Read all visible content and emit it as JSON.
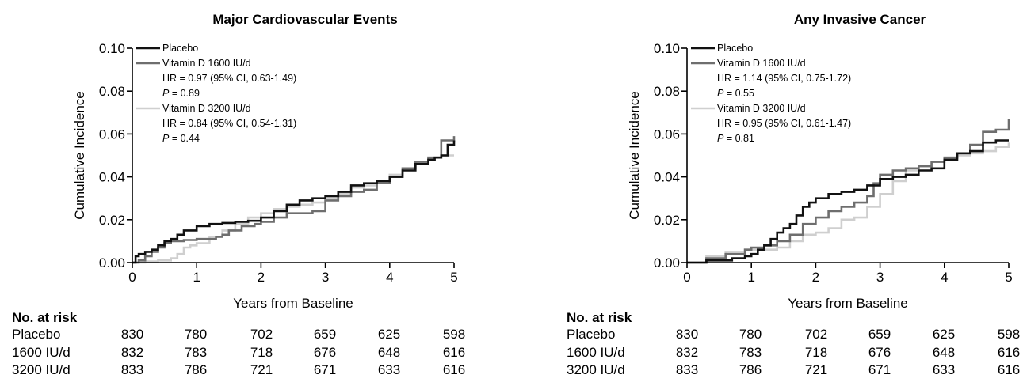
{
  "colors": {
    "placebo": "#111111",
    "vd1600": "#6e6e6e",
    "vd3200": "#cfcfcf",
    "axis": "#000000"
  },
  "risk_table": {
    "heading": "No. at risk",
    "rows": [
      {
        "label": "Placebo",
        "values": [
          "830",
          "780",
          "702",
          "659",
          "625",
          "598"
        ]
      },
      {
        "label": "1600 IU/d",
        "values": [
          "832",
          "783",
          "718",
          "676",
          "648",
          "616"
        ]
      },
      {
        "label": "3200 IU/d",
        "values": [
          "833",
          "786",
          "721",
          "671",
          "633",
          "616"
        ]
      }
    ]
  },
  "chart_data": [
    {
      "type": "line",
      "title": "Major Cardiovascular Events",
      "xlabel": "Years from Baseline",
      "ylabel": "Cumulative Incidence",
      "xlim": [
        0,
        5
      ],
      "ylim": [
        0,
        0.1
      ],
      "x_ticks": [
        "0",
        "1",
        "2",
        "3",
        "4",
        "5"
      ],
      "y_ticks": [
        "0.00",
        "0.02",
        "0.04",
        "0.06",
        "0.08",
        "0.10"
      ],
      "legend": {
        "placement": "top-left",
        "entries": [
          {
            "series": "Placebo",
            "lines": [
              "Placebo"
            ]
          },
          {
            "series": "Vitamin D 1600 IU/d",
            "lines": [
              "Vitamin D 1600 IU/d",
              "HR = 0.97 (95% CI, 0.63-1.49)",
              "P = 0.89"
            ]
          },
          {
            "series": "Vitamin D 3200 IU/d",
            "lines": [
              "Vitamin D 3200 IU/d",
              "HR = 0.84 (95% CI, 0.54-1.31)",
              "P = 0.44"
            ]
          }
        ]
      },
      "series": [
        {
          "name": "Placebo",
          "color_key": "placebo",
          "x": [
            0,
            0.05,
            0.1,
            0.2,
            0.3,
            0.4,
            0.5,
            0.6,
            0.7,
            0.8,
            1.0,
            1.2,
            1.4,
            1.6,
            1.8,
            2.0,
            2.2,
            2.4,
            2.6,
            2.8,
            3.0,
            3.2,
            3.4,
            3.6,
            3.8,
            4.0,
            4.2,
            4.4,
            4.6,
            4.7,
            4.8,
            4.9,
            5.0
          ],
          "y": [
            0,
            0.003,
            0.004,
            0.005,
            0.006,
            0.008,
            0.01,
            0.011,
            0.013,
            0.015,
            0.017,
            0.018,
            0.0185,
            0.019,
            0.0195,
            0.021,
            0.024,
            0.027,
            0.029,
            0.03,
            0.031,
            0.033,
            0.036,
            0.037,
            0.038,
            0.04,
            0.043,
            0.046,
            0.048,
            0.049,
            0.05,
            0.055,
            0.057
          ]
        },
        {
          "name": "Vitamin D 1600 IU/d",
          "color_key": "vd1600",
          "x": [
            0,
            0.1,
            0.2,
            0.3,
            0.4,
            0.5,
            0.6,
            0.8,
            1.0,
            1.2,
            1.3,
            1.4,
            1.5,
            1.7,
            1.9,
            2.0,
            2.2,
            2.4,
            2.6,
            2.8,
            3.0,
            3.2,
            3.4,
            3.6,
            3.8,
            4.0,
            4.2,
            4.4,
            4.6,
            4.8,
            5.0
          ],
          "y": [
            0,
            0.001,
            0.003,
            0.005,
            0.007,
            0.009,
            0.01,
            0.0105,
            0.011,
            0.011,
            0.012,
            0.013,
            0.015,
            0.017,
            0.018,
            0.019,
            0.021,
            0.023,
            0.023,
            0.024,
            0.029,
            0.031,
            0.033,
            0.034,
            0.037,
            0.04,
            0.044,
            0.047,
            0.049,
            0.057,
            0.059
          ]
        },
        {
          "name": "Vitamin D 3200 IU/d",
          "color_key": "vd3200",
          "x": [
            0,
            0.2,
            0.4,
            0.6,
            0.7,
            0.8,
            0.9,
            1.0,
            1.2,
            1.4,
            1.6,
            1.8,
            2.0,
            2.2,
            2.4,
            2.6,
            2.8,
            3.0,
            3.2,
            3.4,
            3.6,
            3.8,
            4.0,
            4.2,
            4.4,
            4.6,
            4.8,
            5.0
          ],
          "y": [
            0,
            0.0005,
            0.001,
            0.002,
            0.004,
            0.007,
            0.008,
            0.009,
            0.012,
            0.015,
            0.018,
            0.021,
            0.023,
            0.025,
            0.026,
            0.027,
            0.028,
            0.03,
            0.032,
            0.035,
            0.036,
            0.038,
            0.041,
            0.044,
            0.047,
            0.049,
            0.05,
            0.05
          ]
        }
      ]
    },
    {
      "type": "line",
      "title": "Any Invasive Cancer",
      "xlabel": "Years from Baseline",
      "ylabel": "Cumulative Incidence",
      "xlim": [
        0,
        5
      ],
      "ylim": [
        0,
        0.1
      ],
      "x_ticks": [
        "0",
        "1",
        "2",
        "3",
        "4",
        "5"
      ],
      "y_ticks": [
        "0.00",
        "0.02",
        "0.04",
        "0.06",
        "0.08",
        "0.10"
      ],
      "legend": {
        "placement": "top-left",
        "entries": [
          {
            "series": "Placebo",
            "lines": [
              "Placebo"
            ]
          },
          {
            "series": "Vitamin D 1600 IU/d",
            "lines": [
              "Vitamin D 1600 IU/d",
              "HR = 1.14 (95% CI, 0.75-1.72)",
              "P = 0.55"
            ]
          },
          {
            "series": "Vitamin D 3200 IU/d",
            "lines": [
              "Vitamin D 3200 IU/d",
              "HR = 0.95 (95% CI, 0.61-1.47)",
              "P = 0.81"
            ]
          }
        ]
      },
      "series": [
        {
          "name": "Placebo",
          "color_key": "placebo",
          "x": [
            0,
            0.3,
            0.5,
            0.7,
            0.9,
            1.0,
            1.1,
            1.2,
            1.3,
            1.4,
            1.5,
            1.6,
            1.7,
            1.8,
            1.9,
            2.0,
            2.2,
            2.4,
            2.6,
            2.8,
            3.0,
            3.2,
            3.4,
            3.6,
            3.8,
            4.0,
            4.2,
            4.4,
            4.6,
            4.8,
            5.0
          ],
          "y": [
            0,
            0.001,
            0.001,
            0.002,
            0.003,
            0.004,
            0.006,
            0.008,
            0.011,
            0.014,
            0.016,
            0.018,
            0.022,
            0.026,
            0.028,
            0.03,
            0.032,
            0.033,
            0.034,
            0.036,
            0.039,
            0.04,
            0.041,
            0.043,
            0.044,
            0.048,
            0.051,
            0.052,
            0.056,
            0.057,
            0.057
          ]
        },
        {
          "name": "Vitamin D 1600 IU/d",
          "color_key": "vd1600",
          "x": [
            0,
            0.3,
            0.6,
            0.9,
            1.0,
            1.2,
            1.4,
            1.6,
            1.8,
            2.0,
            2.2,
            2.4,
            2.6,
            2.8,
            2.9,
            3.0,
            3.2,
            3.4,
            3.6,
            3.8,
            4.0,
            4.2,
            4.4,
            4.6,
            4.8,
            5.0
          ],
          "y": [
            0,
            0.002,
            0.004,
            0.006,
            0.007,
            0.008,
            0.01,
            0.013,
            0.018,
            0.021,
            0.024,
            0.026,
            0.028,
            0.031,
            0.037,
            0.041,
            0.043,
            0.044,
            0.045,
            0.047,
            0.049,
            0.051,
            0.055,
            0.061,
            0.062,
            0.067
          ]
        },
        {
          "name": "Vitamin D 3200 IU/d",
          "color_key": "vd3200",
          "x": [
            0,
            0.3,
            0.6,
            0.9,
            1.0,
            1.2,
            1.4,
            1.6,
            1.8,
            2.0,
            2.2,
            2.4,
            2.6,
            2.8,
            3.0,
            3.2,
            3.4,
            3.6,
            3.8,
            4.0,
            4.2,
            4.4,
            4.6,
            4.8,
            5.0
          ],
          "y": [
            0,
            0.003,
            0.005,
            0.006,
            0.006,
            0.006,
            0.007,
            0.01,
            0.013,
            0.014,
            0.016,
            0.02,
            0.021,
            0.026,
            0.032,
            0.038,
            0.043,
            0.045,
            0.047,
            0.049,
            0.05,
            0.051,
            0.052,
            0.054,
            0.056
          ]
        }
      ]
    }
  ]
}
